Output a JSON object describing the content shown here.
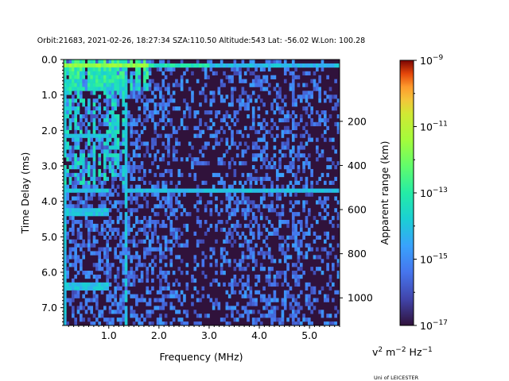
{
  "chart_data": {
    "type": "heatmap",
    "title": "Orbit:21683, 2021-02-26, 18:27:34 SZA:110.50 Altitude:543 Lat: -56.02 W.Lon: 100.28",
    "xlabel": "Frequency (MHz)",
    "ylabel": "Time Delay (ms)",
    "y2label": "Apparent range (km)",
    "xlim": [
      0.1,
      5.6
    ],
    "ylim": [
      0.0,
      7.5
    ],
    "x_ticks": [
      1.0,
      2.0,
      3.0,
      4.0,
      5.0
    ],
    "x_tick_labels": [
      "1.0",
      "2.0",
      "3.0",
      "4.0",
      "5.0"
    ],
    "y_ticks": [
      0.0,
      1.0,
      2.0,
      3.0,
      4.0,
      5.0,
      6.0,
      7.0
    ],
    "y_tick_labels": [
      "0.0",
      "1.0",
      "2.0",
      "3.0",
      "4.0",
      "5.0",
      "6.0",
      "7.0"
    ],
    "y2_ticks": [
      200,
      400,
      600,
      800,
      1000
    ],
    "y2_tick_labels": [
      "200",
      "400",
      "600",
      "800",
      "1000"
    ],
    "y2_range_km": [
      -80,
      1125
    ],
    "colorbar": {
      "scale": "log",
      "colormap": "turbo",
      "range_exponent": [
        -17,
        -9
      ],
      "ticks": [
        {
          "exp": -9,
          "mantissa": "10",
          "power": "−9"
        },
        {
          "exp": -11,
          "mantissa": "10",
          "power": "−11"
        },
        {
          "exp": -13,
          "mantissa": "10",
          "power": "−13"
        },
        {
          "exp": -15,
          "mantissa": "10",
          "power": "−15"
        },
        {
          "exp": -17,
          "mantissa": "10",
          "power": "−17"
        }
      ]
    },
    "units_label": {
      "v": "v",
      "v_pow": "2",
      "m": " m",
      "m_pow": "−2",
      "hz": " Hz",
      "hz_pow": "−1"
    },
    "features": {
      "grid_columns": 104,
      "grid_rows": 68,
      "strong_band_delay_ms": 0.15,
      "spike_column_freq_mhz": [
        0.13,
        0.18,
        0.25,
        0.33,
        0.42,
        0.5,
        0.6,
        0.7,
        0.8,
        0.9,
        1.0,
        1.1,
        1.2,
        1.3,
        1.45,
        1.6,
        1.75
      ],
      "horizontal_lines_delay_ms": [
        2.15,
        3.7,
        4.3,
        6.4
      ],
      "vertical_line_freq_mhz": [
        0.13,
        1.35
      ]
    }
  },
  "credit": "Uni of LEICESTER"
}
